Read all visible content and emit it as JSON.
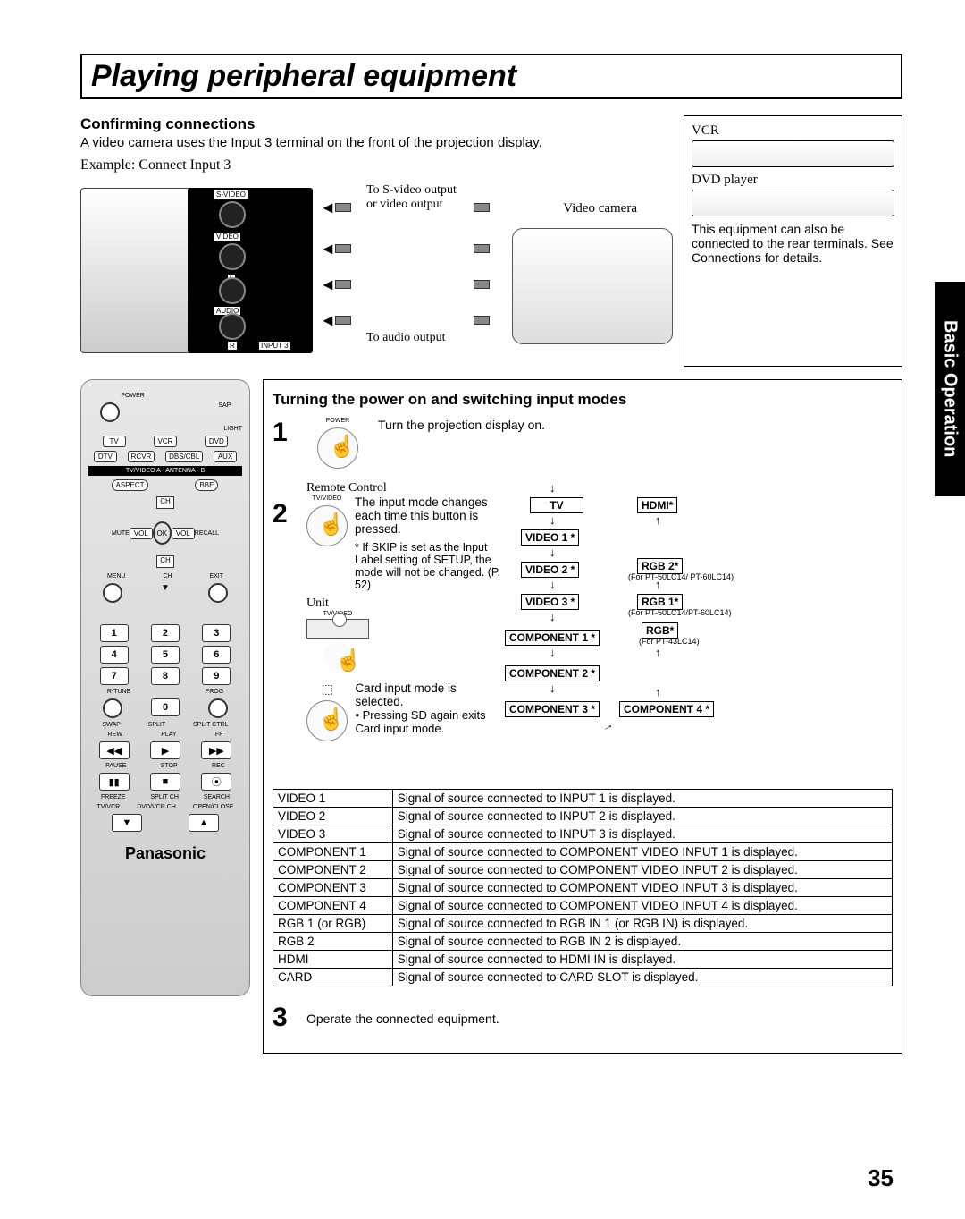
{
  "page_number": "35",
  "side_tab": "Basic Operation",
  "title": "Playing peripheral equipment",
  "section_confirm": {
    "heading": "Confirming connections",
    "body": "A video camera uses the Input 3 terminal on the front of the projection display.",
    "example_label": "Example: Connect Input 3",
    "svideo_label": "To S-video output\nor video output",
    "audio_label": "To audio output",
    "camera_label": "Video camera",
    "ports": {
      "svideo": "S-VIDEO",
      "video": "VIDEO",
      "l": "L",
      "audio": "AUDIO",
      "r": "R",
      "input3": "INPUT 3"
    }
  },
  "right_box": {
    "vcr": "VCR",
    "dvd": "DVD player",
    "note": "This equipment can also be connected to the rear terminals. See Connections for details."
  },
  "section_power": {
    "heading": "Turning the power on and switching input modes",
    "step1_icon_label": "POWER",
    "step1_text": "Turn the projection display on.",
    "step1_num": "1",
    "step2_num": "2",
    "step2_remote_label": "Remote Control",
    "step2_tvvideo": "TV/VIDEO",
    "step2_unit_label": "Unit",
    "step2_unit_sub": "TV/VIDEO",
    "step2_body": "The input mode changes each time this button is pressed.",
    "step2_note": "* If SKIP is set as the Input Label setting of SETUP, the mode will not be changed. (P. 52)",
    "step2_card_body": "Card input mode is selected.",
    "step2_card_bullet": "Pressing SD again exits Card input mode.",
    "step3_num": "3",
    "step3_text": "Operate the connected equipment."
  },
  "flow": {
    "tv": "TV",
    "hdmi": "HDMI*",
    "video1": "VIDEO 1 *",
    "video2": "VIDEO 2 *",
    "video3": "VIDEO 3 *",
    "rgb2": "RGB 2*",
    "rgb2_note": "(For PT-50LC14/ PT-60LC14)",
    "rgb1": "RGB 1*",
    "rgb1_note": "(For PT-50LC14/PT-60LC14)",
    "rgb": "RGB*",
    "rgb_note": "(For PT-43LC14)",
    "comp1": "COMPONENT 1 *",
    "comp2": "COMPONENT 2 *",
    "comp3": "COMPONENT 3 *",
    "comp4": "COMPONENT 4 *"
  },
  "signal_table": [
    [
      "VIDEO 1",
      "Signal of source connected to INPUT 1 is displayed."
    ],
    [
      "VIDEO 2",
      "Signal of source connected to INPUT 2 is displayed."
    ],
    [
      "VIDEO 3",
      "Signal of source connected to INPUT 3 is displayed."
    ],
    [
      "COMPONENT 1",
      "Signal of source connected to COMPONENT VIDEO INPUT 1 is displayed."
    ],
    [
      "COMPONENT 2",
      "Signal of source connected to COMPONENT VIDEO INPUT 2 is displayed."
    ],
    [
      "COMPONENT 3",
      "Signal of source connected to COMPONENT VIDEO INPUT 3 is displayed."
    ],
    [
      "COMPONENT 4",
      "Signal of source connected to COMPONENT VIDEO INPUT 4 is displayed."
    ],
    [
      "RGB 1 (or RGB)",
      "Signal of source connected to RGB IN 1 (or RGB IN) is displayed."
    ],
    [
      "RGB 2",
      "Signal of source connected to RGB IN 2  is displayed."
    ],
    [
      "HDMI",
      "Signal of source connected to HDMI IN is displayed."
    ],
    [
      "CARD",
      "Signal of source connected to CARD SLOT is displayed."
    ]
  ],
  "remote": {
    "power": "POWER",
    "sap": "SAP",
    "light": "LIGHT",
    "row1": [
      "TV",
      "VCR",
      "DVD"
    ],
    "row2": [
      "DTV",
      "RCVR",
      "DBS/CBL",
      "AUX"
    ],
    "strip": "TV/VIDEO           A - ANTENNA - B",
    "aspect": "ASPECT",
    "bbe": "BBE",
    "mute": "MUTE",
    "recall": "RECALL",
    "ch": "CH",
    "vol_l": "VOL",
    "ok": "OK",
    "vol_r": "VOL",
    "menu": "MENU",
    "ch_dn": "CH",
    "exit": "EXIT",
    "nums": [
      "1",
      "2",
      "3",
      "4",
      "5",
      "6",
      "7",
      "8",
      "9",
      "0"
    ],
    "rtune": "R-TUNE",
    "prog": "PROG",
    "tr_row1": [
      "SWAP",
      "SPLIT",
      "SPLIT CTRL"
    ],
    "tr_row1b": [
      "REW",
      "PLAY",
      "FF"
    ],
    "tr_row2": [
      "PAUSE",
      "STOP",
      "REC"
    ],
    "tr_row3": [
      "FREEZE",
      "SPLIT CH",
      "SEARCH"
    ],
    "tr_row3b": [
      "TV/VCR",
      "DVD/VCR CH",
      "OPEN/CLOSE"
    ],
    "brand": "Panasonic"
  },
  "colors": {
    "text": "#000000",
    "bg": "#ffffff",
    "border": "#000000"
  }
}
